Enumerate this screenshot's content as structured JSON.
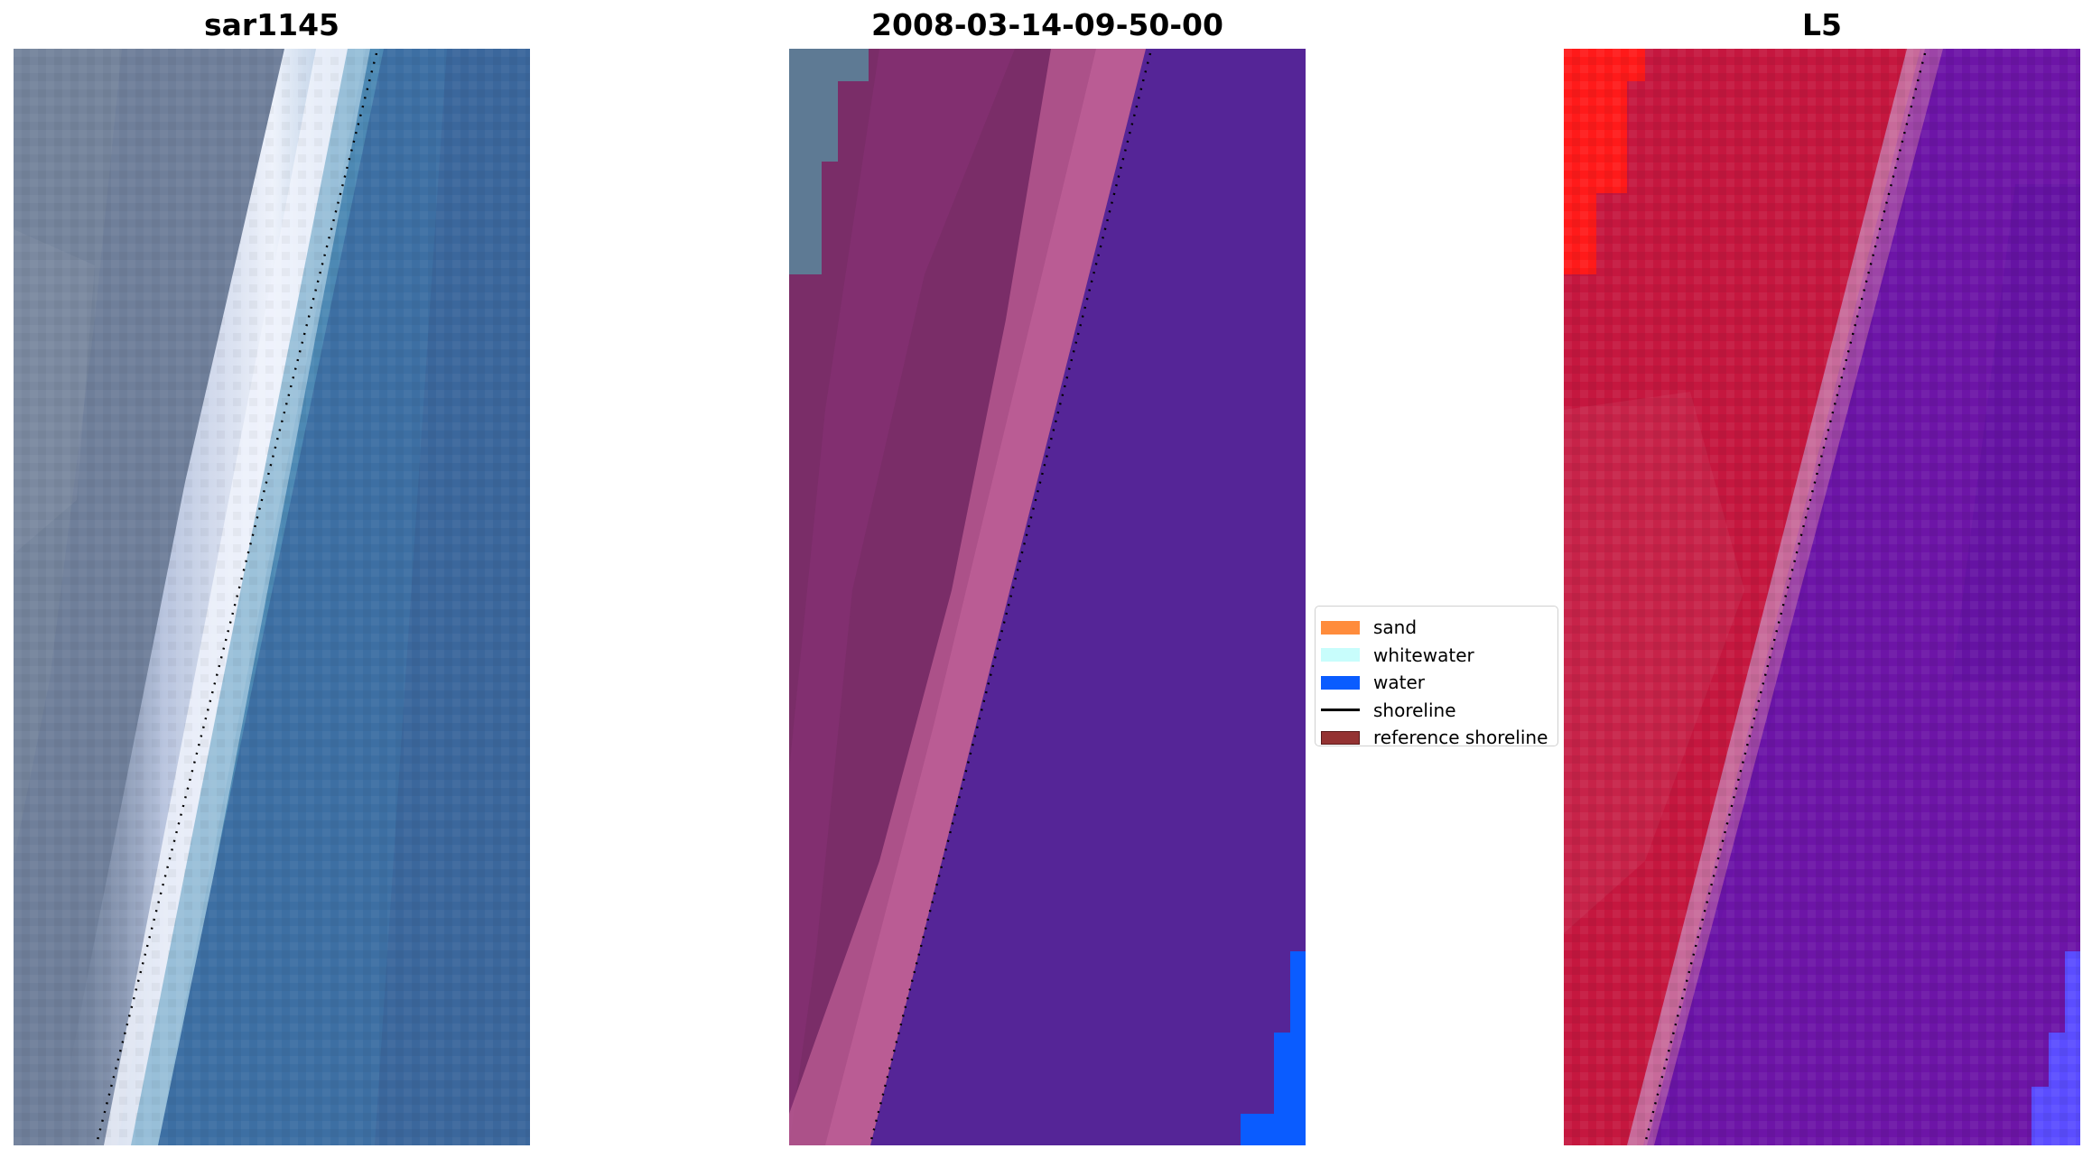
{
  "panels": [
    {
      "id": "rgb",
      "title": "sar1145"
    },
    {
      "id": "classification",
      "title": "2008-03-14-09-50-00"
    },
    {
      "id": "ndwi",
      "title": "L5"
    }
  ],
  "legend": {
    "items": [
      {
        "label": "sand",
        "kind": "patch",
        "color": "#ff8c3c"
      },
      {
        "label": "whitewater",
        "kind": "patch",
        "color": "#c8fdfc"
      },
      {
        "label": "water",
        "kind": "patch",
        "color": "#0a5cff"
      },
      {
        "label": "shoreline",
        "kind": "line",
        "color": "#000000"
      },
      {
        "label": "reference shoreline",
        "kind": "patch",
        "color": "#943232"
      }
    ]
  },
  "colors": {
    "rgb_land": "#6f7f9a",
    "rgb_whitewater": "#e7ecf6",
    "rgb_water": "#3f74a6",
    "class_land": "#7a2d68",
    "class_sand_overlay": "#b5588f",
    "class_water_overlay": "#552597",
    "class_grey": "#5e7a94",
    "class_water_bright": "#0a5cff",
    "l5_land": "#c5173f",
    "l5_land_bright": "#ff1a1a",
    "l5_shore": "#c86a9a",
    "l5_water": "#6a14a6",
    "l5_water_light": "#5b4dff",
    "shoreline": "#000000"
  }
}
